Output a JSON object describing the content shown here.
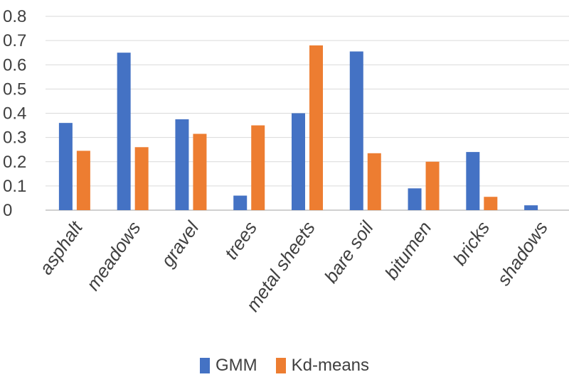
{
  "chart_data": {
    "type": "bar",
    "title": "",
    "xlabel": "",
    "ylabel": "",
    "categories": [
      "asphalt",
      "meadows",
      "gravel",
      "trees",
      "metal sheets",
      "bare soil",
      "bitumen",
      "bricks",
      "shadows"
    ],
    "series": [
      {
        "name": "GMM",
        "color": "#4472C4",
        "values": [
          0.36,
          0.65,
          0.375,
          0.06,
          0.4,
          0.655,
          0.09,
          0.24,
          0.02
        ]
      },
      {
        "name": "Kd-means",
        "color": "#ED7D31",
        "values": [
          0.245,
          0.26,
          0.315,
          0.35,
          0.68,
          0.235,
          0.2,
          0.055,
          0.0
        ]
      }
    ],
    "ylim": [
      0,
      0.8
    ],
    "yticks": [
      "0",
      "0.1",
      "0.2",
      "0.3",
      "0.4",
      "0.5",
      "0.6",
      "0.7",
      "0.8"
    ],
    "grid": true,
    "legend_position": "bottom"
  }
}
